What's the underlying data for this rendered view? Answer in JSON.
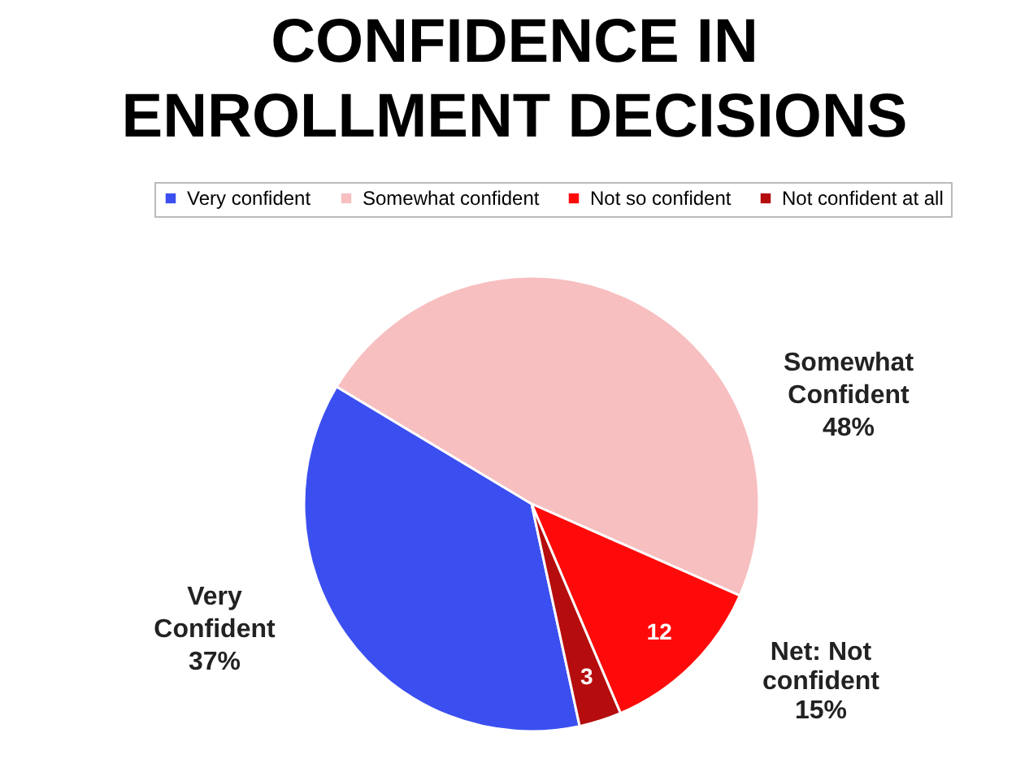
{
  "chart_data": {
    "type": "pie",
    "title": "CONFIDENCE IN\nENROLLMENT DECISIONS",
    "categories": [
      "Very confident",
      "Somewhat confident",
      "Not so confident",
      "Not confident at all"
    ],
    "values": [
      37,
      48,
      12,
      3
    ],
    "colors": [
      "#3b4ff0",
      "#f7bfc0",
      "#ff0a0a",
      "#b50d0d"
    ],
    "value_labels": [
      "Very\nConfident\n37%",
      "Somewhat\nConfident\n48%",
      "12",
      "3"
    ],
    "annotations": [
      "Net: Not\nconfident\n15%"
    ],
    "legend": "top"
  }
}
